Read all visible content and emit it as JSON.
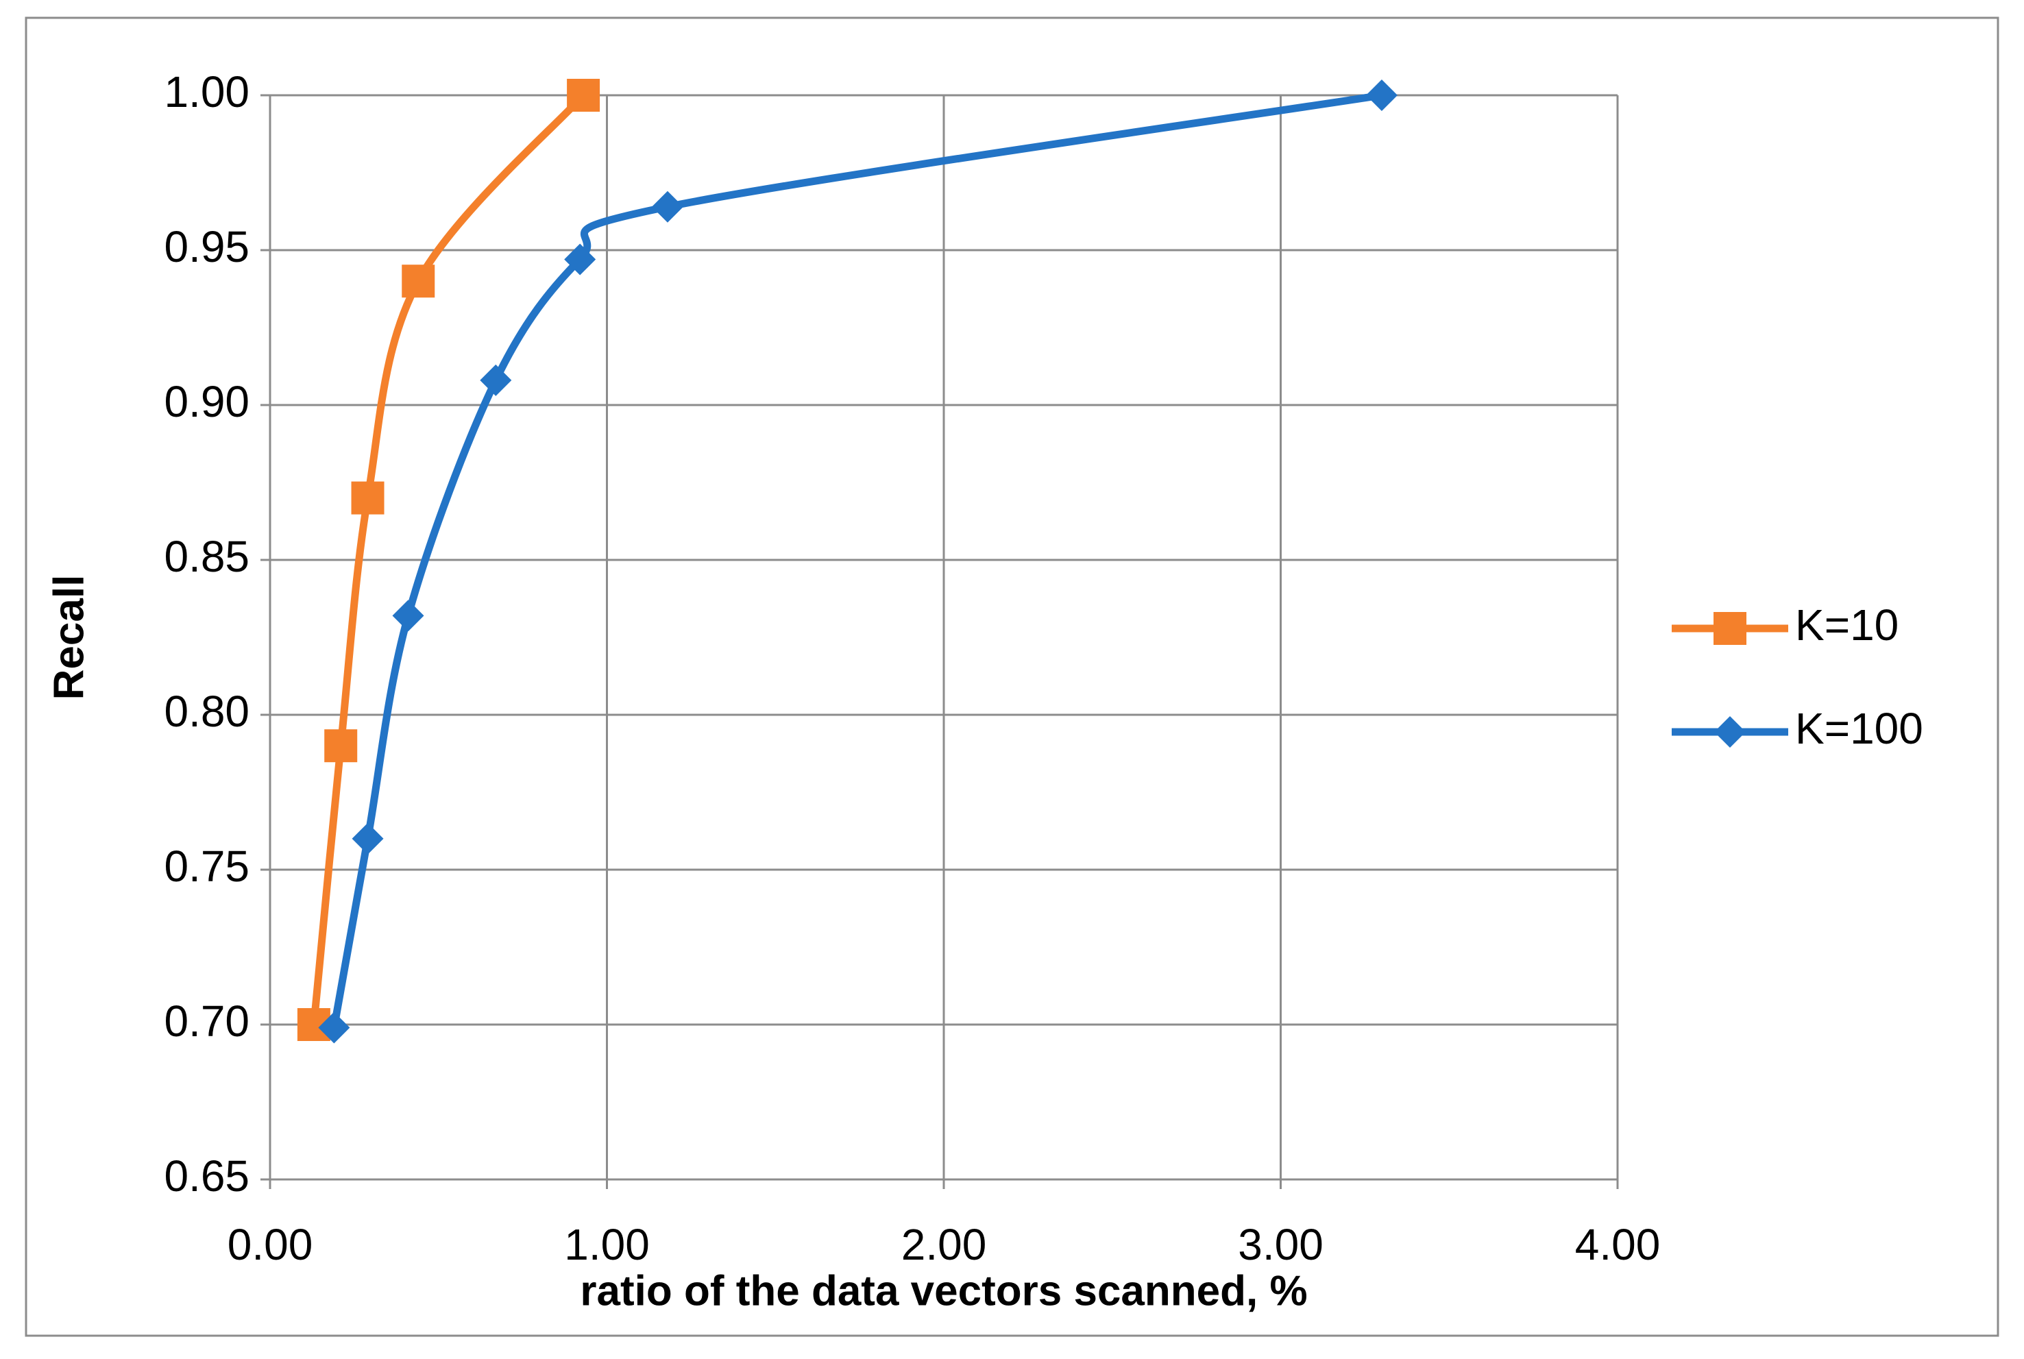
{
  "chart_data": {
    "type": "scatter",
    "x_label": "ratio of the data vectors scanned, %",
    "y_label": "Recall",
    "xlim": [
      0,
      4
    ],
    "ylim": [
      0.65,
      1
    ],
    "xticks": [
      {
        "value": 0,
        "label": "0.00"
      },
      {
        "value": 1,
        "label": "1.00"
      },
      {
        "value": 2,
        "label": "2.00"
      },
      {
        "value": 3,
        "label": "3.00"
      },
      {
        "value": 4,
        "label": "4.00"
      }
    ],
    "yticks": [
      0.65,
      {
        "value": 0.7,
        "label": "0.70"
      },
      0.75,
      {
        "value": 0.8,
        "label": "0.80"
      },
      0.85,
      {
        "value": 0.9,
        "label": "0.90"
      },
      0.95,
      {
        "value": 1,
        "label": "1.00"
      }
    ],
    "grid": true,
    "smooth": true,
    "legend": "right",
    "series": [
      {
        "name": "K=10",
        "color": "#f4802b",
        "marker": "square",
        "x": [
          0.13,
          0.21,
          0.29,
          0.44,
          0.93
        ],
        "values": [
          0.7,
          0.79,
          0.87,
          0.94,
          1.0
        ]
      },
      {
        "name": "K=100",
        "color": "#2374c6",
        "marker": "diamond",
        "x": [
          0.19,
          0.29,
          0.41,
          0.67,
          0.92,
          1.18,
          3.3
        ],
        "values": [
          0.699,
          0.76,
          0.832,
          0.908,
          0.947,
          0.964,
          1.0
        ]
      }
    ]
  }
}
